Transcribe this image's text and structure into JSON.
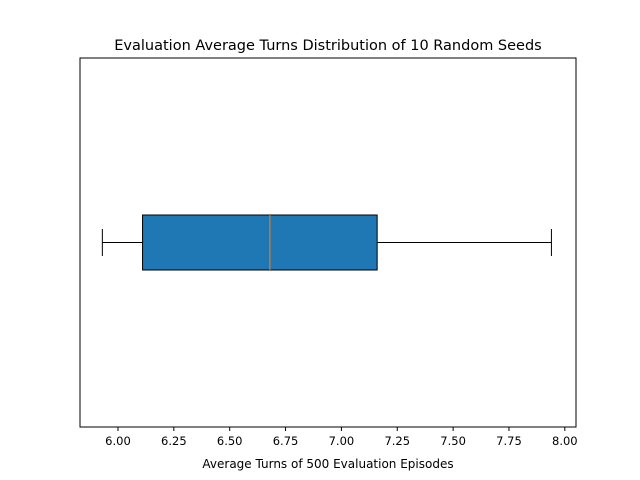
{
  "chart_data": {
    "type": "boxplot",
    "orientation": "horizontal",
    "title": "Evaluation Average Turns Distribution of 10 Random Seeds",
    "xlabel": "Average Turns of 500 Evaluation Episodes",
    "ylabel": "",
    "xlim": [
      5.83,
      8.05
    ],
    "xticks": [
      6.0,
      6.25,
      6.5,
      6.75,
      7.0,
      7.25,
      7.5,
      7.75,
      8.0
    ],
    "xtick_labels": [
      "6.00",
      "6.25",
      "6.50",
      "6.75",
      "7.00",
      "7.25",
      "7.50",
      "7.75",
      "8.00"
    ],
    "box": {
      "whisker_low": 5.93,
      "q1": 6.11,
      "median": 6.68,
      "q3": 7.16,
      "whisker_high": 7.94
    },
    "colors": {
      "box_fill": "#1f77b4",
      "median": "#ff7f0e",
      "edge": "#000000"
    },
    "grid": false,
    "legend": "none"
  }
}
